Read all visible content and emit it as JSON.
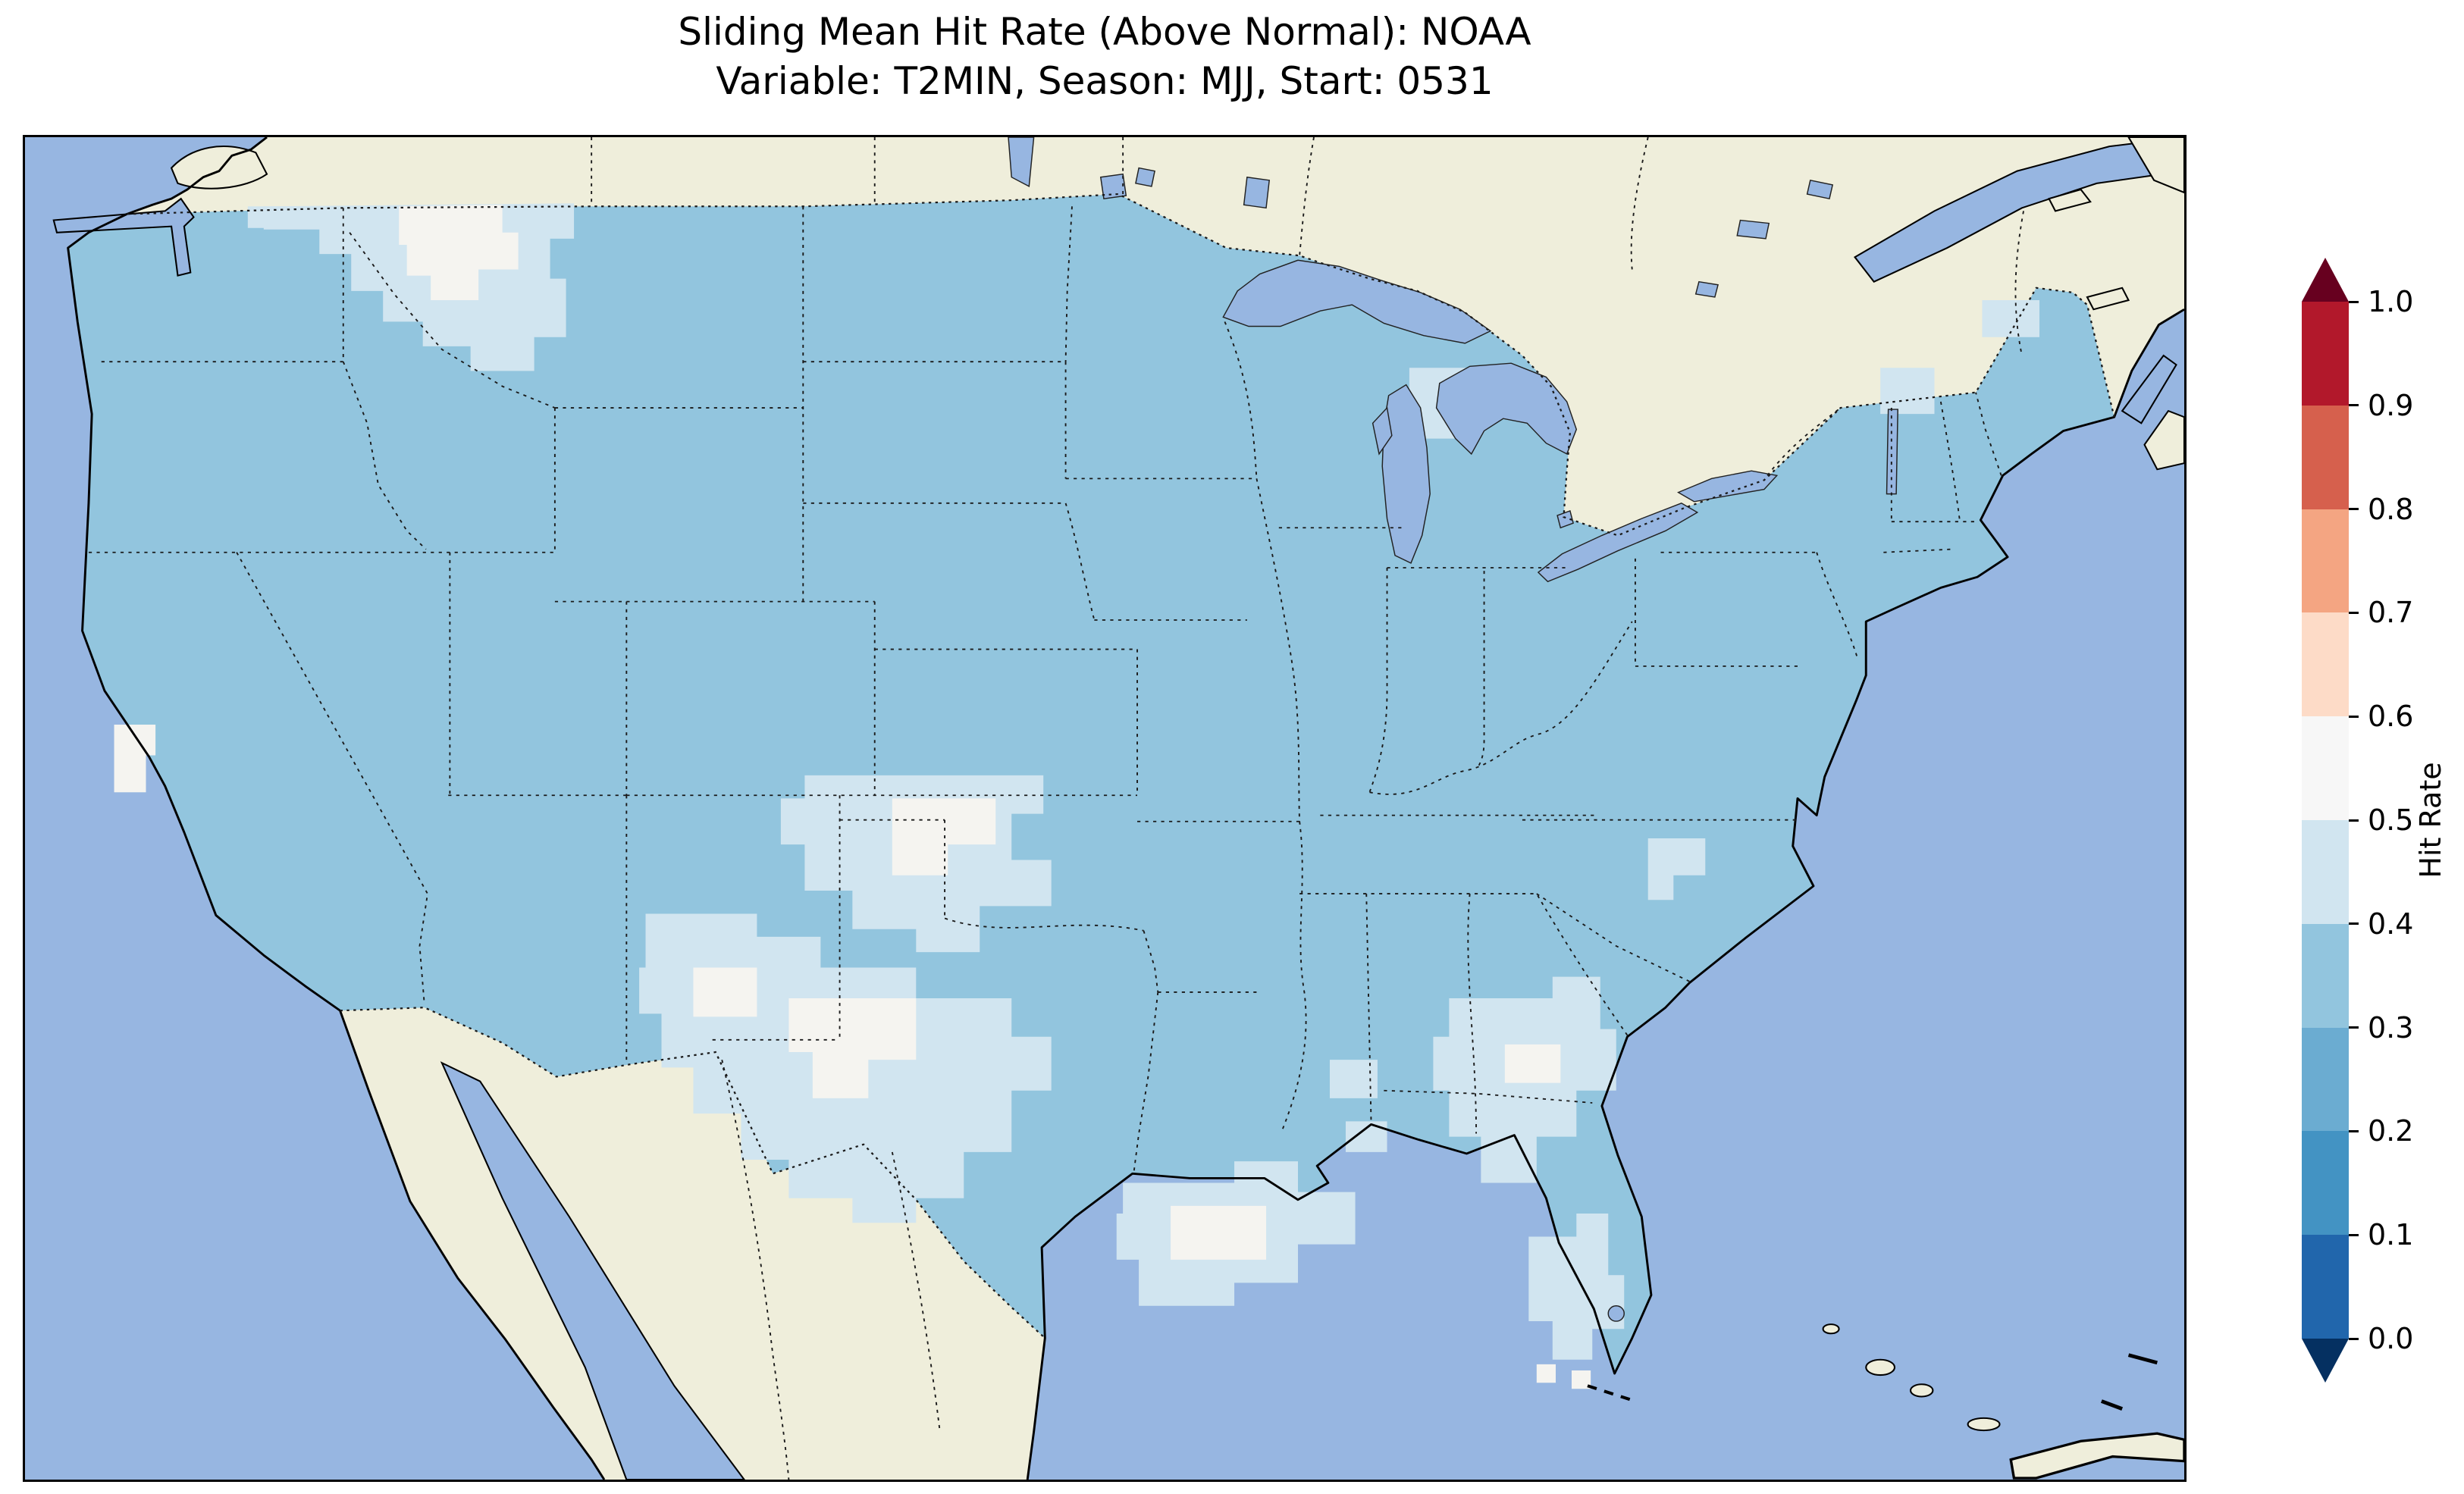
{
  "title": {
    "line1": "Sliding Mean Hit Rate (Above Normal): NOAA",
    "line2": "Variable: T2MIN, Season: MJJ, Start: 0531"
  },
  "chart_data": {
    "type": "heatmap",
    "title": "Sliding Mean Hit Rate (Above Normal): NOAA",
    "subtitle": "Variable: T2MIN, Season: MJJ, Start: 0531",
    "dataset": "NOAA",
    "variable": "T2MIN",
    "season": "MJJ",
    "start": "0531",
    "region": "Contiguous United States with surrounding Canada, Mexico, Gulf of Mexico and western Atlantic",
    "value_field": "Hit Rate",
    "value_range_displayed": [
      0.0,
      1.0
    ],
    "colorbar": {
      "label": "Hit Rate",
      "orientation": "vertical",
      "extend": "both",
      "ticks": [
        0.0,
        0.1,
        0.2,
        0.3,
        0.4,
        0.5,
        0.6,
        0.7,
        0.8,
        0.9,
        1.0
      ],
      "tick_labels": [
        "0.0",
        "0.1",
        "0.2",
        "0.3",
        "0.4",
        "0.5",
        "0.6",
        "0.7",
        "0.8",
        "0.9",
        "1.0"
      ],
      "under_color": "#053061",
      "over_color": "#67001f",
      "segment_colors": [
        "#2166ac",
        "#4393c3",
        "#6bacd1",
        "#92c5de",
        "#d1e5f0",
        "#f7f7f7",
        "#fddbc7",
        "#f4a582",
        "#d6604d",
        "#b2182b"
      ]
    },
    "map_features": [
      "coastlines (solid black)",
      "country borders (dotted)",
      "US state borders (dotted)",
      "Great Lakes",
      "ocean shading",
      "land shading"
    ],
    "observations": [
      "Hit rate over most of the contiguous US falls in the 0.3–0.4 bin (light blue)",
      "Patches of 0.4–0.6 (very light blue to near-white) over eastern Washington, Idaho and western Montana",
      "0.4–0.6 patch over eastern Colorado and western Kansas",
      "Large 0.4–0.6 patch over New Mexico, west Texas and the Oklahoma panhandle region",
      "0.4–0.6 patches along the Louisiana Gulf coast, over Georgia, and central Florida",
      "Small 0.4–0.6 patches on the northern California coast, the Carolinas and northern New England",
      "No values above 0.6 (no red shades) appear anywhere on the map"
    ]
  },
  "map": {
    "colors": {
      "ocean_color": "#97b6e1",
      "land_color": "#efeedb",
      "coast_color": "#000000",
      "border_color": "#1a1a1a",
      "hit_30_40": "#92c5de",
      "hit_40_50": "#d1e5f0",
      "hit_50_60": "#f5f4f0"
    }
  }
}
